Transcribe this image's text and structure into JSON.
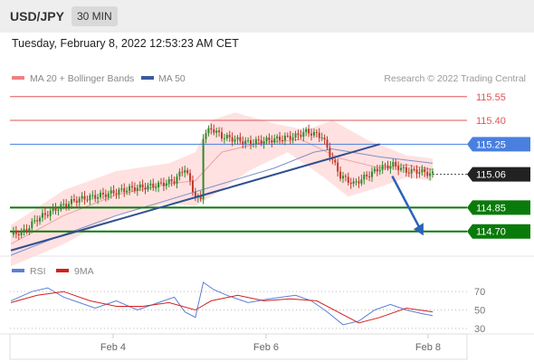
{
  "header": {
    "pair": "USD/JPY",
    "timeframe": "30 MIN"
  },
  "timestamp": "Tuesday, February 8, 2022 12:53:23 AM CET",
  "legend": {
    "bb": {
      "label": "MA 20 + Bollinger Bands",
      "color": "#f08080"
    },
    "ma50": {
      "label": "MA 50",
      "color": "#3c5a99"
    },
    "rsi": {
      "label": "RSI",
      "color": "#5b7fd6"
    },
    "ma9": {
      "label": "9MA",
      "color": "#d42020"
    }
  },
  "credit": "Research © 2022 Trading Central",
  "colors": {
    "resistance": "#e05555",
    "pivot": "#4a7fe0",
    "support": "#0a7a0a",
    "last": "#222222",
    "trendline": "#2f4f8f",
    "band": "#ffd7d7"
  },
  "chart_data": [
    {
      "type": "candlestick",
      "name": "price",
      "x_ticks": [
        "Feb 4",
        "Feb 6",
        "Feb 8"
      ],
      "ylim": [
        114.55,
        115.6
      ],
      "levels": [
        {
          "label": "115.55",
          "value": 115.55,
          "kind": "resistance"
        },
        {
          "label": "115.40",
          "value": 115.4,
          "kind": "resistance"
        },
        {
          "label": "115.25",
          "value": 115.25,
          "kind": "pivot"
        },
        {
          "label": "115.06",
          "value": 115.06,
          "kind": "last"
        },
        {
          "label": "114.85",
          "value": 114.85,
          "kind": "support"
        },
        {
          "label": "114.70",
          "value": 114.7,
          "kind": "support"
        }
      ],
      "close_path": [
        [
          0,
          114.68
        ],
        [
          5,
          114.7
        ],
        [
          10,
          114.78
        ],
        [
          18,
          114.85
        ],
        [
          25,
          114.9
        ],
        [
          35,
          114.93
        ],
        [
          45,
          114.97
        ],
        [
          55,
          114.99
        ],
        [
          62,
          115.02
        ],
        [
          66,
          115.1
        ],
        [
          70,
          114.92
        ],
        [
          72,
          114.9
        ],
        [
          73,
          115.3
        ],
        [
          76,
          115.35
        ],
        [
          80,
          115.3
        ],
        [
          90,
          115.26
        ],
        [
          100,
          115.28
        ],
        [
          108,
          115.3
        ],
        [
          112,
          115.33
        ],
        [
          118,
          115.3
        ],
        [
          122,
          115.15
        ],
        [
          125,
          115.05
        ],
        [
          130,
          115.0
        ],
        [
          135,
          115.05
        ],
        [
          140,
          115.1
        ],
        [
          145,
          115.12
        ],
        [
          150,
          115.08
        ],
        [
          155,
          115.08
        ],
        [
          160,
          115.06
        ]
      ],
      "ma20": [
        [
          0,
          114.62
        ],
        [
          20,
          114.8
        ],
        [
          40,
          114.93
        ],
        [
          60,
          115.0
        ],
        [
          70,
          115.02
        ],
        [
          80,
          115.2
        ],
        [
          95,
          115.26
        ],
        [
          110,
          115.28
        ],
        [
          125,
          115.16
        ],
        [
          140,
          115.1
        ],
        [
          150,
          115.12
        ],
        [
          160,
          115.09
        ]
      ],
      "bb_upper": [
        [
          0,
          114.74
        ],
        [
          20,
          114.96
        ],
        [
          40,
          115.08
        ],
        [
          60,
          115.13
        ],
        [
          70,
          115.2
        ],
        [
          76,
          115.4
        ],
        [
          85,
          115.45
        ],
        [
          100,
          115.38
        ],
        [
          112,
          115.34
        ],
        [
          122,
          115.4
        ],
        [
          135,
          115.28
        ],
        [
          150,
          115.18
        ],
        [
          160,
          115.16
        ]
      ],
      "bb_lower": [
        [
          0,
          114.48
        ],
        [
          20,
          114.62
        ],
        [
          40,
          114.8
        ],
        [
          60,
          114.88
        ],
        [
          70,
          114.86
        ],
        [
          76,
          114.92
        ],
        [
          90,
          115.08
        ],
        [
          105,
          115.2
        ],
        [
          118,
          115.05
        ],
        [
          128,
          114.92
        ],
        [
          140,
          114.98
        ],
        [
          150,
          115.04
        ],
        [
          160,
          115.02
        ]
      ],
      "ma50": [
        [
          0,
          114.55
        ],
        [
          20,
          114.68
        ],
        [
          40,
          114.8
        ],
        [
          60,
          114.9
        ],
        [
          80,
          115.0
        ],
        [
          100,
          115.1
        ],
        [
          115,
          115.2
        ],
        [
          122,
          115.22
        ],
        [
          140,
          115.17
        ],
        [
          160,
          115.13
        ]
      ],
      "trendline": [
        [
          0,
          114.58
        ],
        [
          140,
          115.25
        ]
      ],
      "forecast": [
        [
          144,
          115.06
        ],
        [
          150,
          114.8
        ]
      ]
    },
    {
      "type": "line",
      "name": "rsi-panel",
      "ylim": [
        25,
        80
      ],
      "y_ticks": [
        70,
        50,
        30
      ],
      "series": [
        {
          "name": "RSI",
          "values": [
            [
              0,
              60
            ],
            [
              8,
              70
            ],
            [
              14,
              74
            ],
            [
              20,
              64
            ],
            [
              26,
              58
            ],
            [
              32,
              52
            ],
            [
              40,
              60
            ],
            [
              48,
              50
            ],
            [
              56,
              58
            ],
            [
              62,
              64
            ],
            [
              66,
              48
            ],
            [
              70,
              42
            ],
            [
              73,
              80
            ],
            [
              77,
              72
            ],
            [
              82,
              66
            ],
            [
              90,
              58
            ],
            [
              98,
              62
            ],
            [
              108,
              66
            ],
            [
              114,
              60
            ],
            [
              120,
              48
            ],
            [
              126,
              34
            ],
            [
              132,
              38
            ],
            [
              138,
              50
            ],
            [
              144,
              56
            ],
            [
              150,
              50
            ],
            [
              156,
              46
            ],
            [
              160,
              44
            ]
          ]
        },
        {
          "name": "9MA",
          "values": [
            [
              0,
              58
            ],
            [
              10,
              66
            ],
            [
              20,
              70
            ],
            [
              30,
              60
            ],
            [
              40,
              54
            ],
            [
              50,
              54
            ],
            [
              60,
              58
            ],
            [
              70,
              50
            ],
            [
              76,
              60
            ],
            [
              86,
              66
            ],
            [
              96,
              60
            ],
            [
              106,
              62
            ],
            [
              116,
              60
            ],
            [
              124,
              48
            ],
            [
              132,
              36
            ],
            [
              140,
              42
            ],
            [
              150,
              52
            ],
            [
              160,
              48
            ]
          ]
        }
      ]
    }
  ]
}
